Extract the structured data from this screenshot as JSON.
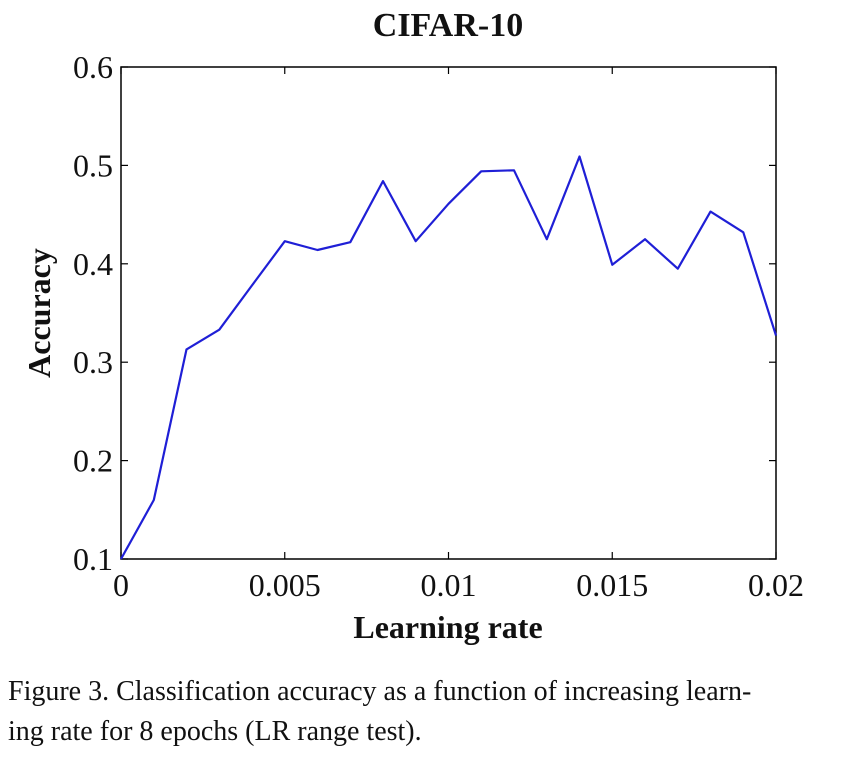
{
  "chart_data": {
    "type": "line",
    "title": "CIFAR-10",
    "xlabel": "Learning rate",
    "ylabel": "Accuracy",
    "xlim": [
      0,
      0.02
    ],
    "ylim": [
      0.1,
      0.6
    ],
    "xticks": [
      "0",
      "0.005",
      "0.01",
      "0.015",
      "0.02"
    ],
    "yticks": [
      "0.1",
      "0.2",
      "0.3",
      "0.4",
      "0.5",
      "0.6"
    ],
    "grid": false,
    "color": "#1f1fd6",
    "series": [
      {
        "x": [
          0,
          0.001,
          0.002,
          0.003,
          0.004,
          0.005,
          0.006,
          0.007,
          0.008,
          0.009,
          0.01,
          0.011,
          0.012,
          0.013,
          0.014,
          0.015,
          0.016,
          0.017,
          0.018,
          0.019,
          0.02
        ],
        "y": [
          0.1,
          0.16,
          0.313,
          0.333,
          0.378,
          0.423,
          0.414,
          0.422,
          0.484,
          0.423,
          0.461,
          0.494,
          0.495,
          0.425,
          0.509,
          0.399,
          0.425,
          0.395,
          0.453,
          0.432,
          0.327
        ]
      }
    ]
  },
  "caption": {
    "line1": "Figure 3. Classification accuracy as a function of increasing learn-",
    "line2": "ing rate for 8 epochs (LR range test)."
  }
}
